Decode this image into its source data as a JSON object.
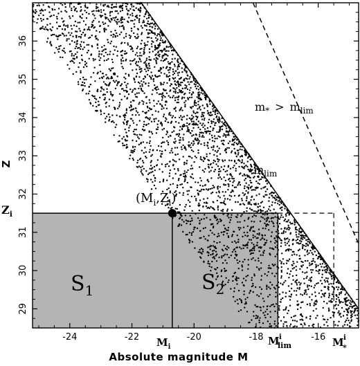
{
  "chart_data": {
    "type": "scatter",
    "title": "",
    "xlabel": "Absolute magnitude M",
    "ylabel": "Z",
    "xlim": [
      -25.2,
      -14.7
    ],
    "ylim": [
      28.5,
      37
    ],
    "x_ticks": [
      -24,
      -22,
      -20,
      -18,
      -16
    ],
    "x_tick_labels": [
      "-24",
      "-22",
      "-20",
      "-18",
      "-16"
    ],
    "y_ticks": [
      29,
      30,
      31,
      32,
      33,
      34,
      35,
      36
    ],
    "y_tick_labels": [
      "29",
      "30",
      "31",
      "32",
      "33",
      "34",
      "35",
      "36"
    ],
    "grid": false,
    "boundaries": {
      "m_lim": [
        [
          -21.7,
          37.0
        ],
        [
          -14.7,
          29.0
        ]
      ],
      "m_star": [
        [
          -18.1,
          37.0
        ],
        [
          -14.7,
          30.7
        ]
      ]
    },
    "point": {
      "x": -20.7,
      "y": 31.5
    },
    "Z_i": 31.5,
    "M_i": -20.7,
    "M_lim_i": -17.3,
    "M_star_i": -15.5,
    "n_points": 3600,
    "annotations": {
      "m_star_gt_mlim": "m* > mlim",
      "m_lim": "mlim",
      "point_label": "(Mi,Zi)",
      "region_s1": "S1",
      "region_s2": "S2"
    }
  },
  "labels": {
    "m_star_main": "m",
    "m_star_sub": "*",
    "gt": ">",
    "m_main": "m",
    "lim_sub": "lim",
    "mlim_main": "m",
    "mlim_sub": "lim",
    "pt_open": "(M",
    "pt_i1": "i",
    "pt_comma": ",Z",
    "pt_i2": "i",
    "pt_close": ")",
    "s1_main": "S",
    "s1_sub": "1",
    "s2_main": "S",
    "s2_sub": "2",
    "zi_main": "Z",
    "zi_sub": "i",
    "mi_main": "M",
    "mi_sub": "i",
    "mlimi_main": "M",
    "mlimi_sup": "i",
    "mlimi_sub": "lim",
    "mstari_main": "M",
    "mstari_sup": "i",
    "mstari_sub": "*"
  },
  "colors": {
    "shade": "#b4b4b4",
    "ink": "#000000"
  }
}
